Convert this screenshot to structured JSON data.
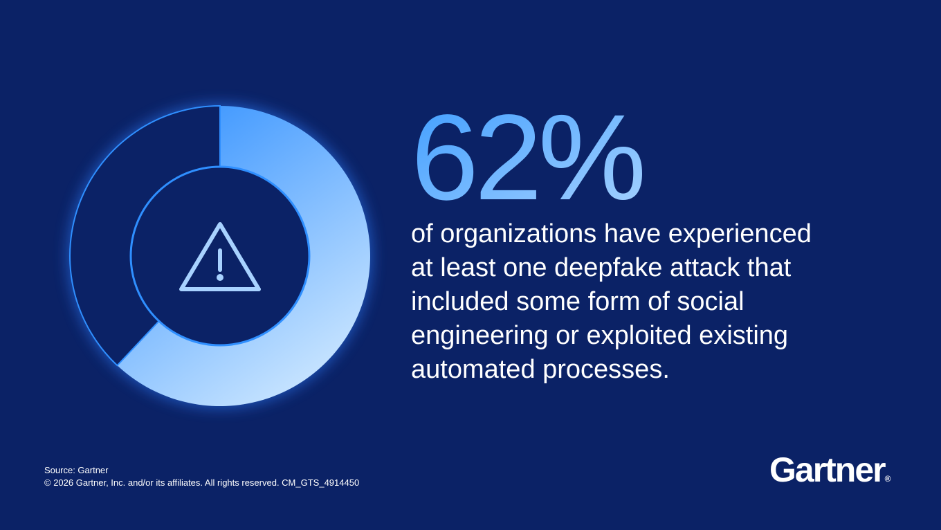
{
  "chart_data": {
    "type": "donut",
    "values": [
      62,
      38
    ],
    "value_labels": [
      "62%",
      null
    ],
    "colors": [
      "#3a9bff",
      "#0b2266"
    ],
    "description": [
      "of organizations have experienced",
      "at least one deepfake attack that",
      "included some form of social",
      "engineering or exploited existing",
      "automated processes."
    ]
  },
  "footer": {
    "source": "Source: Gartner",
    "copyright": "© 2026 Gartner, Inc. and/or its affiliates. All rights reserved. CM_GTS_4914450",
    "logo": "Gartner"
  }
}
